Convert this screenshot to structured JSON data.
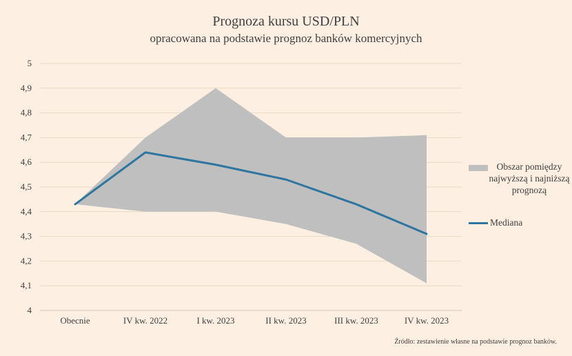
{
  "chart_data": {
    "type": "area",
    "title": "Prognoza kursu USD/PLN",
    "subtitle": "opracowana na podstawie prognoz banków komercyjnych",
    "categories": [
      "Obecnie",
      "IV kw. 2022",
      "I kw. 2023",
      "II kw. 2023",
      "III kw. 2023",
      "IV kw. 2023"
    ],
    "ylim": [
      4,
      5
    ],
    "yticks": [
      "4",
      "4,1",
      "4,2",
      "4,3",
      "4,4",
      "4,5",
      "4,6",
      "4,7",
      "4,8",
      "4,9",
      "5"
    ],
    "grid": true,
    "legend_position": "right",
    "band": {
      "name": "Obszar pomiędzy najwyższą i najniższą prognozą",
      "upper": [
        4.43,
        4.7,
        4.9,
        4.7,
        4.7,
        4.71
      ],
      "lower": [
        4.43,
        4.4,
        4.4,
        4.35,
        4.27,
        4.11
      ],
      "color": "#bfbfbf"
    },
    "series": [
      {
        "name": "Mediana",
        "values": [
          4.43,
          4.64,
          4.59,
          4.53,
          4.43,
          4.31
        ],
        "color": "#2e75a0"
      }
    ],
    "source": "Źródło: zestawienie własne na podstawie prognoz banków."
  }
}
